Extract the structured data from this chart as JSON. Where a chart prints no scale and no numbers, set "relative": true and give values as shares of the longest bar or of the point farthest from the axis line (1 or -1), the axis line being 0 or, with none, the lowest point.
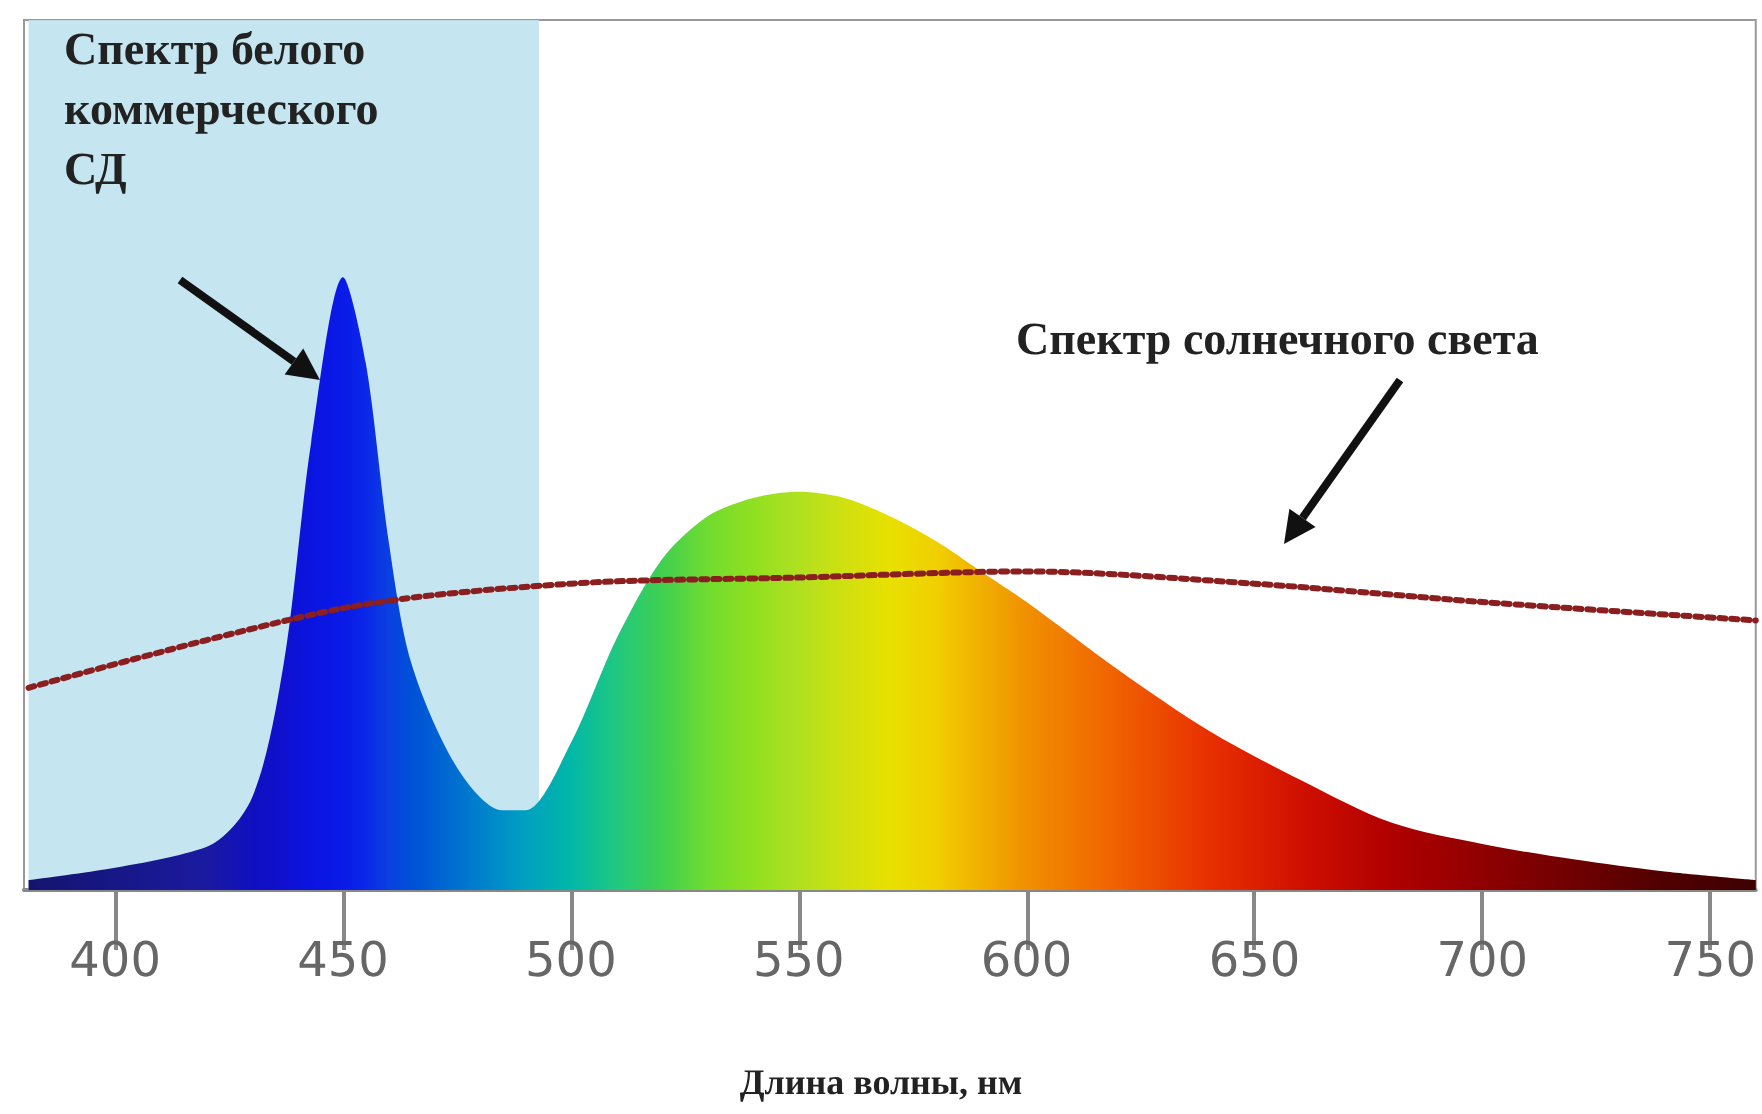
{
  "chart_data": {
    "type": "area",
    "relative": true,
    "xlabel": "Длина волны, нм",
    "xlim": [
      380,
      760
    ],
    "xticks": [
      400,
      450,
      500,
      550,
      600,
      650,
      700,
      750
    ],
    "grid": false,
    "bands": [
      {
        "axis": "x",
        "from": 381,
        "to": 493,
        "color": "#bfe3ef"
      }
    ],
    "series": [
      {
        "color": "#0a1ae8",
        "x": [
          381,
          420,
          430,
          437,
          443,
          450,
          455,
          460,
          465,
          475,
          485,
          490,
          500,
          510,
          520,
          530,
          540,
          550,
          560,
          570,
          580,
          590,
          600,
          620,
          640,
          660,
          680,
          700,
          720,
          740,
          760
        ],
        "values": [
          0.016,
          0.07,
          0.15,
          0.37,
          0.73,
          1,
          0.86,
          0.57,
          0.37,
          0.2,
          0.13,
          0.13,
          0.24,
          0.41,
          0.54,
          0.61,
          0.64,
          0.65,
          0.64,
          0.61,
          0.57,
          0.52,
          0.47,
          0.36,
          0.26,
          0.18,
          0.11,
          0.075,
          0.05,
          0.03,
          0.016
        ],
        "colors": [
          "#14146e",
          "#1a1aa0",
          "#1010c0",
          "#1010d0",
          "#0a14e0",
          "#0a1ae8",
          "#0a28e8",
          "#0a40e0",
          "#0050d8",
          "#0070d0",
          "#0090c8",
          "#00a0c0",
          "#00b8a8",
          "#20c880",
          "#40d050",
          "#70dc30",
          "#90e020",
          "#b0e020",
          "#d0e010",
          "#e8e000",
          "#f0d000",
          "#f0b000",
          "#f09000",
          "#f06000",
          "#e83000",
          "#d01000",
          "#b00000",
          "#900000",
          "#700000",
          "#500000",
          "#400000"
        ]
      },
      {
        "type": "line",
        "color": "#8b1e1e",
        "line_style": "dotted",
        "x": [
          381,
          450,
          500,
          550,
          600,
          650,
          700,
          760
        ],
        "values": [
          0.33,
          0.46,
          0.5,
          0.51,
          0.52,
          0.5,
          0.47,
          0.44
        ]
      }
    ],
    "annotations": [
      "Спектр белого коммерческого СД",
      "Спектр солнечного света"
    ]
  }
}
